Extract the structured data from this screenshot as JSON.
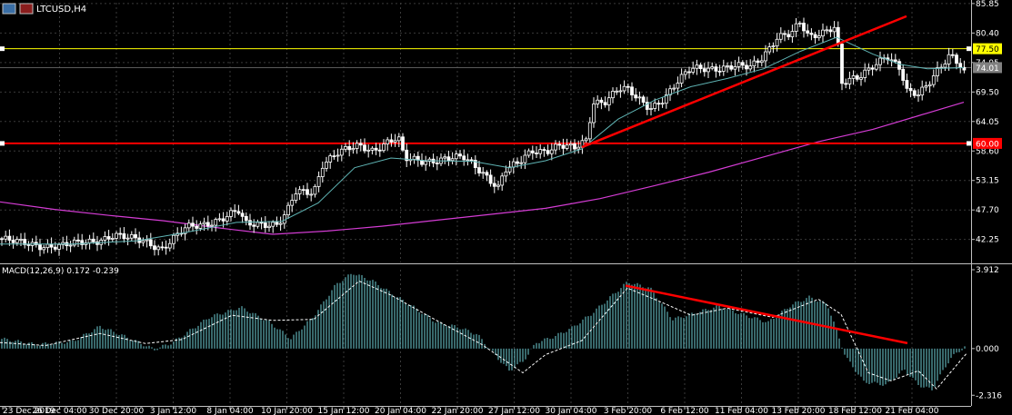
{
  "header": {
    "title": "LTCUSD,H4",
    "icon": "chart-window-icon"
  },
  "chart_data": [
    {
      "type": "candlestick",
      "symbol": "LTCUSD",
      "timeframe": "H4",
      "ylim": [
        38.0,
        86.0
      ],
      "y_ticks": [
        "85.85",
        "80.40",
        "74.95",
        "69.50",
        "64.05",
        "58.60",
        "53.15",
        "47.70",
        "42.25"
      ],
      "x_ticks": [
        "23 Dec 2019",
        "26 Dec 04:00",
        "30 Dec 20:00",
        "3 Jan 12:00",
        "8 Jan 04:00",
        "10 Jan 20:00",
        "15 Jan 12:00",
        "20 Jan 04:00",
        "22 Jan 20:00",
        "27 Jan 12:00",
        "30 Jan 04:00",
        "3 Feb 20:00",
        "6 Feb 12:00",
        "11 Feb 04:00",
        "13 Feb 20:00",
        "18 Feb 12:00",
        "21 Feb 04:00"
      ],
      "price_levels": [
        {
          "label": "77.50",
          "value": 77.5,
          "color": "#ffff00"
        },
        {
          "label": "74.01",
          "value": 74.01,
          "color": "#808080"
        },
        {
          "label": "60.00",
          "value": 60.0,
          "color": "#ff0000"
        }
      ],
      "trendline": {
        "from": [
          640,
          59.3
        ],
        "to": [
          997,
          83.5
        ],
        "color": "#ff0000"
      },
      "close_path": [
        [
          0,
          42.4
        ],
        [
          20,
          41.6
        ],
        [
          45,
          41.2
        ],
        [
          70,
          41.0
        ],
        [
          95,
          41.8
        ],
        [
          110,
          42.3
        ],
        [
          125,
          43.0
        ],
        [
          140,
          42.4
        ],
        [
          160,
          42.0
        ],
        [
          178,
          40.6
        ],
        [
          190,
          42.2
        ],
        [
          205,
          44.3
        ],
        [
          225,
          45.2
        ],
        [
          245,
          46.2
        ],
        [
          262,
          47.4
        ],
        [
          270,
          45.0
        ],
        [
          290,
          45.3
        ],
        [
          305,
          45.1
        ],
        [
          315,
          47.0
        ],
        [
          325,
          50.8
        ],
        [
          345,
          51.0
        ],
        [
          355,
          56.4
        ],
        [
          370,
          58.2
        ],
        [
          395,
          59.4
        ],
        [
          410,
          58.8
        ],
        [
          425,
          60.3
        ],
        [
          438,
          61.0
        ],
        [
          445,
          57.0
        ],
        [
          465,
          56.7
        ],
        [
          490,
          57.3
        ],
        [
          510,
          57.2
        ],
        [
          525,
          55.4
        ],
        [
          535,
          54.1
        ],
        [
          548,
          52.0
        ],
        [
          555,
          55.1
        ],
        [
          570,
          56.1
        ],
        [
          585,
          58.6
        ],
        [
          600,
          58.8
        ],
        [
          615,
          59.7
        ],
        [
          632,
          58.9
        ],
        [
          645,
          60.5
        ],
        [
          652,
          67.7
        ],
        [
          665,
          67.9
        ],
        [
          680,
          70.1
        ],
        [
          690,
          69.8
        ],
        [
          700,
          68.3
        ],
        [
          715,
          66.6
        ],
        [
          730,
          68.4
        ],
        [
          745,
          71.2
        ],
        [
          760,
          73.7
        ],
        [
          775,
          74.0
        ],
        [
          795,
          74.0
        ],
        [
          810,
          74.1
        ],
        [
          825,
          74.0
        ],
        [
          838,
          76.0
        ],
        [
          855,
          79.8
        ],
        [
          870,
          80.1
        ],
        [
          880,
          82.1
        ],
        [
          890,
          79.5
        ],
        [
          900,
          80.4
        ],
        [
          915,
          81.6
        ],
        [
          920,
          81.7
        ],
        [
          925,
          71.0
        ],
        [
          945,
          72.0
        ],
        [
          960,
          74.5
        ],
        [
          975,
          76.5
        ],
        [
          990,
          73.6
        ],
        [
          998,
          69.1
        ],
        [
          1010,
          69.0
        ],
        [
          1020,
          71.0
        ],
        [
          1030,
          73.6
        ],
        [
          1045,
          76.4
        ],
        [
          1055,
          74.4
        ],
        [
          1063,
          71.9
        ]
      ],
      "ma_fast": [
        [
          0,
          41.4
        ],
        [
          80,
          41.4
        ],
        [
          150,
          42.0
        ],
        [
          200,
          43.4
        ],
        [
          260,
          45.4
        ],
        [
          310,
          45.6
        ],
        [
          350,
          49.0
        ],
        [
          390,
          55.5
        ],
        [
          430,
          57.3
        ],
        [
          470,
          56.8
        ],
        [
          520,
          56.7
        ],
        [
          560,
          55.5
        ],
        [
          600,
          56.8
        ],
        [
          640,
          59.0
        ],
        [
          680,
          64.5
        ],
        [
          720,
          68.0
        ],
        [
          760,
          70.5
        ],
        [
          800,
          72.0
        ],
        [
          840,
          73.8
        ],
        [
          880,
          77.0
        ],
        [
          920,
          79.6
        ],
        [
          960,
          76.5
        ],
        [
          990,
          74.6
        ],
        [
          1020,
          73.8
        ],
        [
          1060,
          74.0
        ]
      ],
      "ma_slow": [
        [
          0,
          49.2
        ],
        [
          60,
          47.8
        ],
        [
          120,
          46.7
        ],
        [
          180,
          45.7
        ],
        [
          240,
          44.4
        ],
        [
          300,
          43.2
        ],
        [
          360,
          43.8
        ],
        [
          420,
          44.7
        ],
        [
          480,
          45.8
        ],
        [
          540,
          46.9
        ],
        [
          600,
          48.0
        ],
        [
          660,
          49.8
        ],
        [
          720,
          52.2
        ],
        [
          780,
          54.7
        ],
        [
          840,
          57.5
        ],
        [
          900,
          60.3
        ],
        [
          960,
          62.6
        ],
        [
          1010,
          65.1
        ],
        [
          1060,
          67.6
        ]
      ]
    },
    {
      "type": "bar",
      "title": "MACD(12,26,9) 0.172 -0.239",
      "ylim": [
        -2.8,
        3.912
      ],
      "y_ticks": [
        "3.912",
        "0.000",
        "-2.316"
      ],
      "trendline": {
        "from": [
          688,
          3.12
        ],
        "to": [
          998,
          0.27
        ],
        "color": "#ff0000"
      },
      "histogram": [
        [
          0,
          0.5
        ],
        [
          40,
          0.2
        ],
        [
          80,
          0.35
        ],
        [
          110,
          1.1
        ],
        [
          140,
          0.55
        ],
        [
          170,
          -0.05
        ],
        [
          190,
          0.3
        ],
        [
          230,
          1.55
        ],
        [
          265,
          2.05
        ],
        [
          295,
          1.35
        ],
        [
          320,
          0.5
        ],
        [
          345,
          1.6
        ],
        [
          370,
          3.2
        ],
        [
          388,
          3.75
        ],
        [
          410,
          3.35
        ],
        [
          430,
          2.75
        ],
        [
          455,
          2.05
        ],
        [
          480,
          1.3
        ],
        [
          505,
          1.05
        ],
        [
          525,
          0.7
        ],
        [
          545,
          -0.35
        ],
        [
          560,
          -1.1
        ],
        [
          575,
          -0.65
        ],
        [
          590,
          0.3
        ],
        [
          610,
          0.6
        ],
        [
          630,
          1.05
        ],
        [
          650,
          1.7
        ],
        [
          670,
          2.5
        ],
        [
          690,
          3.3
        ],
        [
          715,
          3.0
        ],
        [
          740,
          1.45
        ],
        [
          760,
          1.7
        ],
        [
          790,
          2.1
        ],
        [
          820,
          1.65
        ],
        [
          845,
          1.3
        ],
        [
          870,
          2.15
        ],
        [
          890,
          2.55
        ],
        [
          910,
          2.2
        ],
        [
          930,
          -0.4
        ],
        [
          950,
          -1.65
        ],
        [
          975,
          -1.8
        ],
        [
          995,
          -1.05
        ],
        [
          1010,
          -1.8
        ],
        [
          1025,
          -2.05
        ],
        [
          1045,
          -0.5
        ],
        [
          1063,
          0.17
        ]
      ],
      "signal": [
        [
          0,
          0.3
        ],
        [
          50,
          0.15
        ],
        [
          110,
          0.75
        ],
        [
          160,
          0.25
        ],
        [
          200,
          0.45
        ],
        [
          255,
          1.65
        ],
        [
          300,
          1.4
        ],
        [
          345,
          1.45
        ],
        [
          395,
          3.35
        ],
        [
          430,
          2.65
        ],
        [
          480,
          1.4
        ],
        [
          530,
          0.2
        ],
        [
          575,
          -1.2
        ],
        [
          600,
          -0.3
        ],
        [
          640,
          0.4
        ],
        [
          690,
          3.0
        ],
        [
          730,
          2.25
        ],
        [
          760,
          1.65
        ],
        [
          800,
          2.0
        ],
        [
          850,
          1.55
        ],
        [
          900,
          2.45
        ],
        [
          925,
          1.7
        ],
        [
          955,
          -1.2
        ],
        [
          980,
          -1.6
        ],
        [
          1010,
          -1.1
        ],
        [
          1030,
          -2.0
        ],
        [
          1063,
          -0.24
        ]
      ]
    }
  ]
}
